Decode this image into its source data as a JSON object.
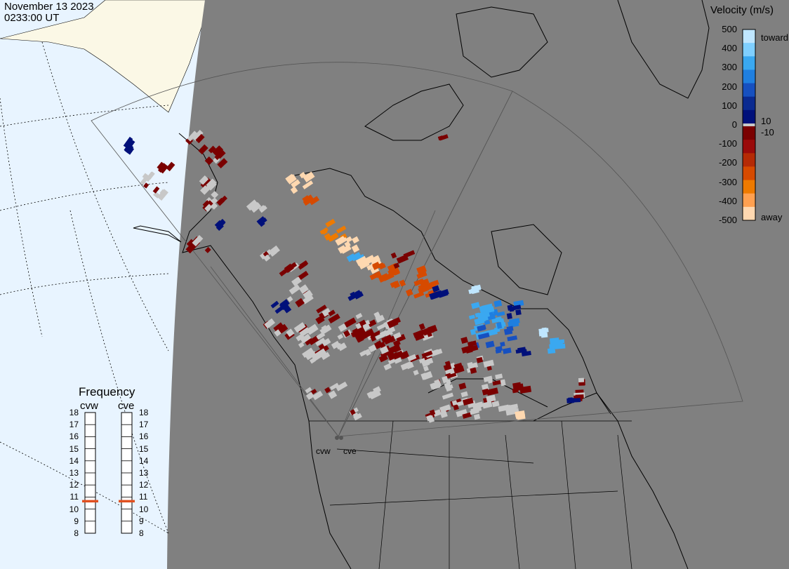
{
  "header": {
    "date": "November 13 2023",
    "time": "0233:00 UT"
  },
  "velocity_scale": {
    "title": "Velocity (m/s)",
    "ticks": [
      "500",
      "400",
      "300",
      "200",
      "100",
      "0",
      "-100",
      "-200",
      "-300",
      "-400",
      "-500"
    ],
    "values": [
      500,
      400,
      300,
      200,
      100,
      0,
      -100,
      -200,
      -300,
      -400,
      -500
    ],
    "inner_labels": [
      "10",
      "-10"
    ],
    "toward_label": "toward",
    "away_label": "away",
    "colors_toward": [
      "#bfe6ff",
      "#7fcfff",
      "#3aa8f0",
      "#1f7fe0",
      "#1650c0",
      "#0a2a90",
      "#00107a"
    ],
    "colors_away": [
      "#7a0000",
      "#9a0a0a",
      "#b52a05",
      "#d64a00",
      "#ee7a00",
      "#ffa050",
      "#ffd8b0"
    ],
    "ground_scatter_color": "#c8c8c8"
  },
  "frequency_panel": {
    "title": "Frequency",
    "radars": [
      {
        "name": "cvw",
        "selected_mhz": 11
      },
      {
        "name": "cve",
        "selected_mhz": 11
      }
    ],
    "ticks": [
      "18",
      "17",
      "16",
      "15",
      "14",
      "13",
      "12",
      "11",
      "10",
      "9",
      "8"
    ],
    "marker_color": "#e05020"
  },
  "sites": [
    "cvw",
    "cve"
  ],
  "map_colors": {
    "night": "#808080",
    "ocean_day": "#e8f4ff",
    "land_day": "#fbf8e6",
    "coast": "#000000",
    "fov_outline": "#555555"
  }
}
